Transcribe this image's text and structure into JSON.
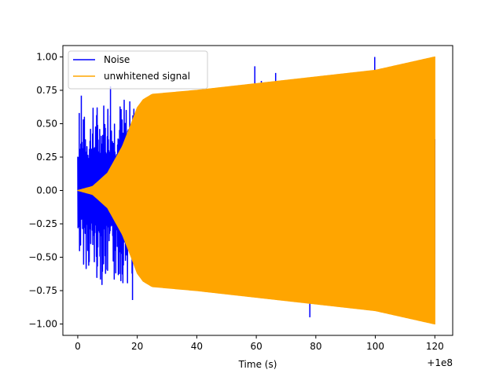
{
  "chart_data": {
    "type": "line",
    "title": "",
    "xlabel": "Time (s)",
    "ylabel": "",
    "x_offset_label": "+1e8",
    "xlim": [
      -5,
      126
    ],
    "ylim": [
      -1.085,
      1.085
    ],
    "x_ticks": [
      0,
      20,
      40,
      60,
      80,
      100,
      120
    ],
    "x_tick_labels": [
      "0",
      "20",
      "40",
      "60",
      "80",
      "100",
      "120"
    ],
    "y_ticks": [
      -1.0,
      -0.75,
      -0.5,
      -0.25,
      0.0,
      0.25,
      0.5,
      0.75,
      1.0
    ],
    "y_tick_labels": [
      "−1.00",
      "−0.75",
      "−0.50",
      "−0.25",
      "0.00",
      "0.25",
      "0.50",
      "0.75",
      "1.00"
    ],
    "grid": false,
    "legend_position": "upper-left",
    "series": [
      {
        "name": "Noise",
        "color": "#0000ff",
        "x_range": [
          0,
          120
        ],
        "amplitude_envelope": {
          "x": [
            0,
            1,
            5,
            10,
            15,
            20,
            40,
            60,
            80,
            100,
            120
          ],
          "y": [
            0.5,
            0.55,
            0.65,
            0.75,
            0.7,
            0.7,
            0.75,
            0.8,
            0.8,
            0.85,
            0.85
          ]
        },
        "peaks": [
          {
            "x": 0.5,
            "y": 0.58
          },
          {
            "x": 1.2,
            "y": 0.71
          },
          {
            "x": 2.0,
            "y": 0.5
          },
          {
            "x": 11.0,
            "y": 0.78
          },
          {
            "x": 18.4,
            "y": -0.82
          },
          {
            "x": 38.0,
            "y": 0.68
          },
          {
            "x": 53.0,
            "y": 0.77
          },
          {
            "x": 59.5,
            "y": 0.93
          },
          {
            "x": 61.7,
            "y": 0.82
          },
          {
            "x": 66.5,
            "y": 0.88
          },
          {
            "x": 78.0,
            "y": -0.95
          },
          {
            "x": 99.8,
            "y": 1.0
          }
        ]
      },
      {
        "name": "unwhitened signal",
        "color": "#ffa500",
        "x_range": [
          0,
          120
        ],
        "amplitude_envelope": {
          "x": [
            0,
            5,
            10,
            15,
            18,
            20,
            22,
            25,
            30,
            40,
            60,
            80,
            100,
            120
          ],
          "y": [
            0.0,
            0.03,
            0.13,
            0.33,
            0.5,
            0.62,
            0.68,
            0.72,
            0.73,
            0.75,
            0.8,
            0.85,
            0.9,
            1.0
          ]
        }
      }
    ]
  }
}
